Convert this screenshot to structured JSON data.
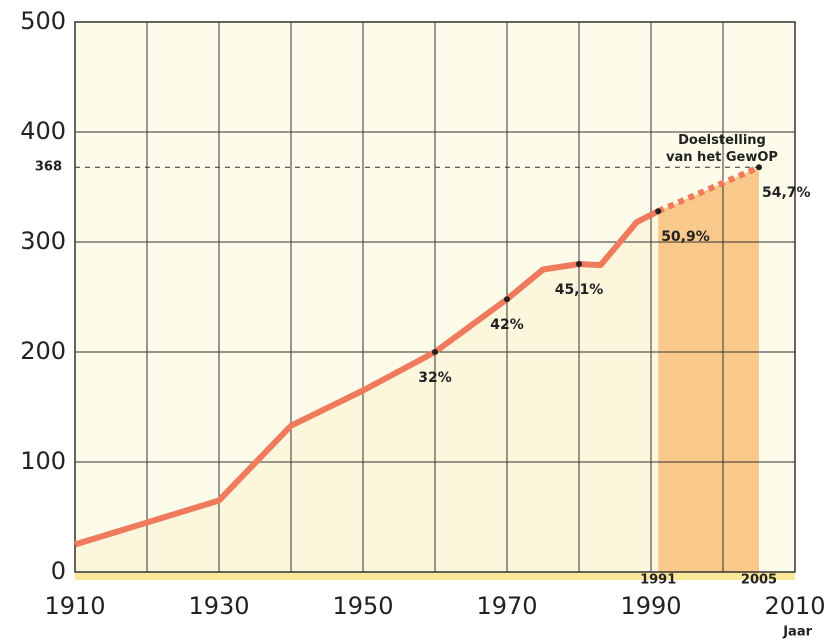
{
  "chart_data": {
    "type": "line",
    "xlabel": "Jaar",
    "xlim": [
      1910,
      2010
    ],
    "xticks": [
      1910,
      1930,
      1950,
      1970,
      1990,
      2010
    ],
    "ylim": [
      0,
      500
    ],
    "yticks": [
      0,
      100,
      200,
      300,
      400,
      500
    ],
    "grid": true,
    "series": [
      {
        "color": "#ef7a5c",
        "style": "solid",
        "x": [
          1910,
          1930,
          1940,
          1950,
          1960,
          1970,
          1975,
          1980,
          1983,
          1988,
          1991
        ],
        "values": [
          25,
          65,
          133,
          165,
          200,
          248,
          275,
          280,
          279,
          318,
          328
        ]
      },
      {
        "color": "#ef7a5c",
        "style": "dotted",
        "x": [
          1991,
          2005
        ],
        "values": [
          328,
          368
        ]
      }
    ],
    "target": 368,
    "target_label": "Doelstelling van het GewOP",
    "highlight_range": [
      1991,
      2005
    ],
    "annotations": [
      {
        "x": 1960,
        "y": 200,
        "label": "32%"
      },
      {
        "x": 1970,
        "y": 248,
        "label": "42%"
      },
      {
        "x": 1980,
        "y": 280,
        "label": "45,1%"
      },
      {
        "x": 1991,
        "y": 328,
        "label": "50,9%"
      },
      {
        "x": 2005,
        "y": 368,
        "label": "54,7%"
      }
    ]
  }
}
